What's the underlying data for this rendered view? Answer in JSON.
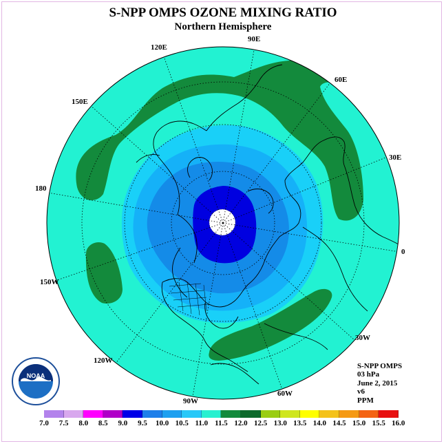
{
  "title": "S-NPP OMPS OZONE MIXING RATIO",
  "subtitle": "Northern Hemisphere",
  "longitude_labels": [
    "90E",
    "60E",
    "30E",
    "0",
    "30W",
    "60W",
    "90W",
    "120W",
    "150W",
    "180",
    "150E",
    "120E"
  ],
  "info": {
    "instrument": "S-NPP OMPS",
    "level": "03 hPa",
    "date": "June 2, 2015",
    "version": "v6",
    "units": "PPM"
  },
  "logo_text": "NOAA",
  "colorbar": {
    "ticks": [
      "7.0",
      "7.5",
      "8.0",
      "8.5",
      "9.0",
      "9.5",
      "10.0",
      "10.5",
      "11.0",
      "11.5",
      "12.0",
      "12.5",
      "13.0",
      "13.5",
      "14.0",
      "14.5",
      "15.0",
      "15.5",
      "16.0"
    ],
    "colors": [
      "#b383ec",
      "#d8a8ee",
      "#ff00ff",
      "#b000c8",
      "#0000e8",
      "#1e7fea",
      "#1ea0f0",
      "#28c8f8",
      "#28f0d0",
      "#138a3c",
      "#0d6a2c",
      "#9acd12",
      "#cfe61e",
      "#ffff00",
      "#f4c21a",
      "#f59a14",
      "#f46414",
      "#e81010",
      "#8b5a2b"
    ]
  },
  "colors": {
    "ocean_level": "#22f2d2",
    "band_10_5": "#19d0f8",
    "band_10_0": "#15b1f8",
    "band_9_5": "#148be8",
    "band_9_0": "#0000e0",
    "band_11_5": "#138a3c",
    "frame": "#e2b6e4"
  }
}
